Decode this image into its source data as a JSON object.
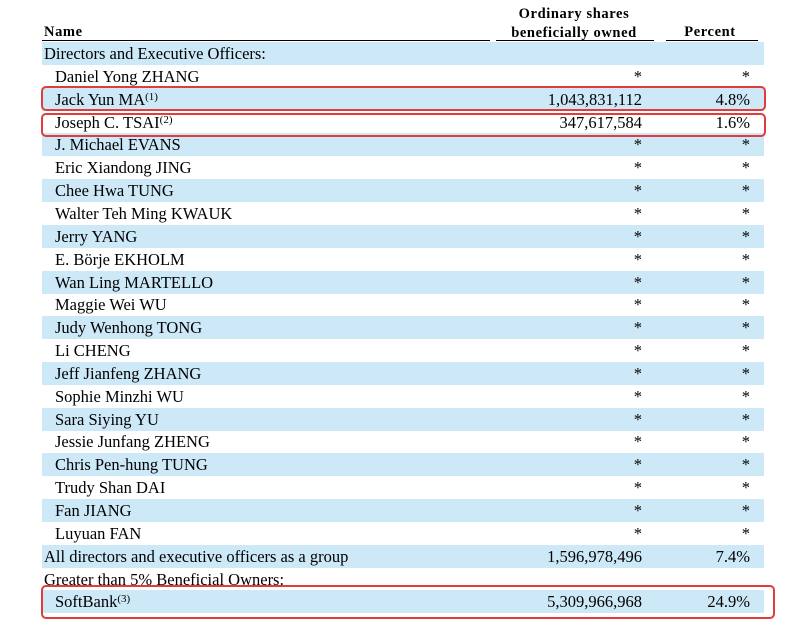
{
  "header": {
    "name": "Name",
    "shares_line1": "Ordinary shares",
    "shares_line2": "beneficially owned",
    "percent": "Percent"
  },
  "rows": [
    {
      "name": "Directors and Executive Officers:",
      "sup": "",
      "shares": "",
      "percent": "",
      "section": true
    },
    {
      "name": "Daniel Yong ZHANG",
      "sup": "",
      "shares": "*",
      "percent": "*"
    },
    {
      "name": "Jack Yun MA",
      "sup": "(1)",
      "shares": "1,043,831,112",
      "percent": "4.8%"
    },
    {
      "name": "Joseph C. TSAI",
      "sup": "(2)",
      "shares": "347,617,584",
      "percent": "1.6%"
    },
    {
      "name": "J. Michael EVANS",
      "sup": "",
      "shares": "*",
      "percent": "*"
    },
    {
      "name": "Eric Xiandong JING",
      "sup": "",
      "shares": "*",
      "percent": "*"
    },
    {
      "name": "Chee Hwa TUNG",
      "sup": "",
      "shares": "*",
      "percent": "*"
    },
    {
      "name": "Walter Teh Ming KWAUK",
      "sup": "",
      "shares": "*",
      "percent": "*"
    },
    {
      "name": "Jerry YANG",
      "sup": "",
      "shares": "*",
      "percent": "*"
    },
    {
      "name": "E. Börje EKHOLM",
      "sup": "",
      "shares": "*",
      "percent": "*"
    },
    {
      "name": "Wan Ling MARTELLO",
      "sup": "",
      "shares": "*",
      "percent": "*"
    },
    {
      "name": "Maggie Wei WU",
      "sup": "",
      "shares": "*",
      "percent": "*"
    },
    {
      "name": "Judy Wenhong TONG",
      "sup": "",
      "shares": "*",
      "percent": "*"
    },
    {
      "name": "Li CHENG",
      "sup": "",
      "shares": "*",
      "percent": "*"
    },
    {
      "name": "Jeff Jianfeng ZHANG",
      "sup": "",
      "shares": "*",
      "percent": "*"
    },
    {
      "name": "Sophie Minzhi WU",
      "sup": "",
      "shares": "*",
      "percent": "*"
    },
    {
      "name": "Sara Siying YU",
      "sup": "",
      "shares": "*",
      "percent": "*"
    },
    {
      "name": "Jessie Junfang ZHENG",
      "sup": "",
      "shares": "*",
      "percent": "*"
    },
    {
      "name": "Chris Pen-hung TUNG",
      "sup": "",
      "shares": "*",
      "percent": "*"
    },
    {
      "name": "Trudy Shan DAI",
      "sup": "",
      "shares": "*",
      "percent": "*"
    },
    {
      "name": "Fan JIANG",
      "sup": "",
      "shares": "*",
      "percent": "*"
    },
    {
      "name": "Luyuan FAN",
      "sup": "",
      "shares": "*",
      "percent": "*"
    },
    {
      "name": "All directors and executive officers as a group",
      "sup": "",
      "shares": "1,596,978,496",
      "percent": "7.4%",
      "section": true
    },
    {
      "name": "Greater than 5% Beneficial Owners:",
      "sup": "",
      "shares": "",
      "percent": "",
      "section": true
    },
    {
      "name": "SoftBank",
      "sup": "(3)",
      "shares": "5,309,966,968",
      "percent": "24.9%"
    }
  ],
  "highlight_color": "#e03c3c",
  "row_shade_color": "#cde9f7"
}
